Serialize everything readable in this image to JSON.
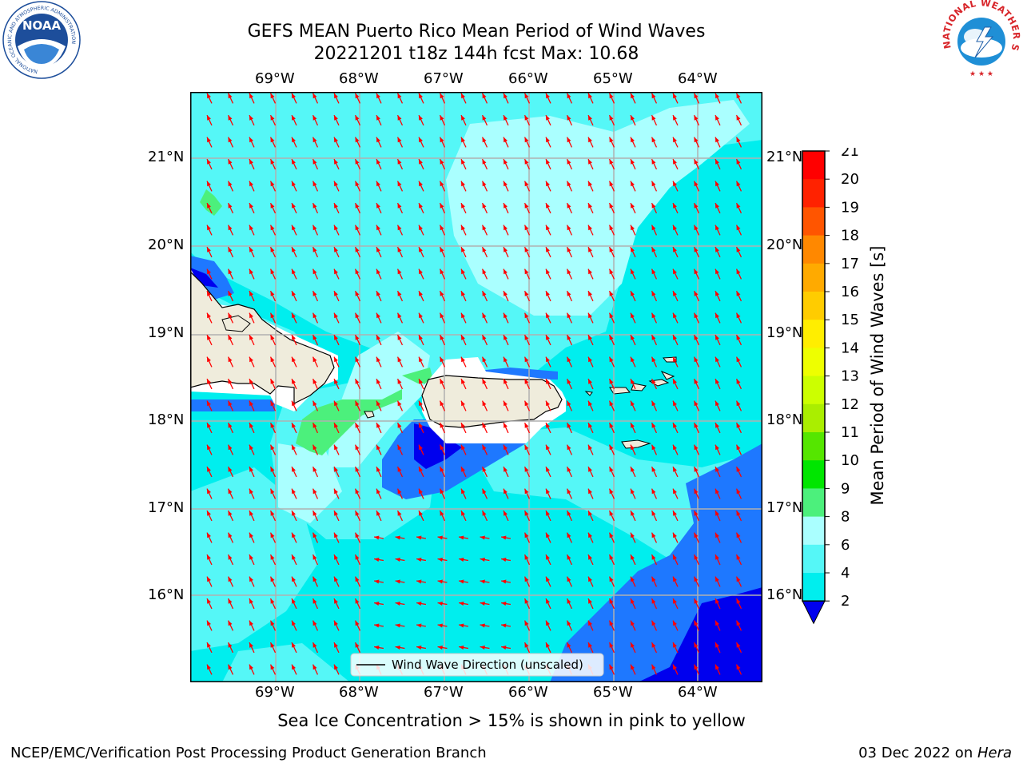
{
  "header": {
    "title_line1": "GEFS MEAN Puerto Rico Mean Period of Wind Waves",
    "title_line2": "20221201 t18z 144h fcst   Max: 10.68"
  },
  "logos": {
    "left": {
      "name": "NOAA",
      "ring_text": "NATIONAL OCEANIC AND ATMOSPHERIC ADMINISTRATION",
      "ring_text_bottom": "U.S. DEPARTMENT OF COMMERCE",
      "colors": {
        "inner": "#1d4e9b",
        "outer": "#ffffff"
      }
    },
    "right": {
      "ring_text_top": "NATIONAL WEATHER SERVICE",
      "colors": {
        "text": "#d8262b",
        "inner": "#1f8fd6"
      }
    }
  },
  "map": {
    "lon_labels": [
      "69°W",
      "68°W",
      "67°W",
      "66°W",
      "65°W",
      "64°W"
    ],
    "lat_labels": [
      "21°N",
      "20°N",
      "19°N",
      "18°N",
      "17°N",
      "16°N"
    ],
    "legend_label": "Wind Wave Direction (unscaled)",
    "arrow_color": "#ff0000",
    "land_color": "#efecdc",
    "grid_color": "#b0b0b0",
    "field_colors": {
      "ocean_main": "#00eeee",
      "ocean_light": "#55f7f7",
      "ocean_pale": "#aaffff",
      "mid_blue": "#1e78ff",
      "deep_blue": "#0000ee",
      "green": "#4cf07c"
    }
  },
  "colorbar": {
    "label": "Mean Period of Wind Waves [s]",
    "ticks": [
      "2",
      "4",
      "6",
      "8",
      "9",
      "10",
      "11",
      "12",
      "13",
      "14",
      "15",
      "16",
      "17",
      "18",
      "19",
      "20",
      "21"
    ],
    "colors": [
      "#1e78ff",
      "#00eeee",
      "#55f7f7",
      "#aaffff",
      "#4cf07c",
      "#00e600",
      "#55e600",
      "#aaee00",
      "#ccff00",
      "#eeff00",
      "#ffee00",
      "#ffcc00",
      "#ffaa00",
      "#ff8800",
      "#ff5500",
      "#ff2200",
      "#ff0000"
    ],
    "under_color": "#0000ee"
  },
  "notes": {
    "sea_ice": "Sea Ice Concentration > 15% is shown in pink to yellow"
  },
  "footer": {
    "left": "NCEP/EMC/Verification Post Processing Product Generation Branch",
    "right_prefix": "03 Dec 2022 on ",
    "right_machine": "Hera"
  }
}
